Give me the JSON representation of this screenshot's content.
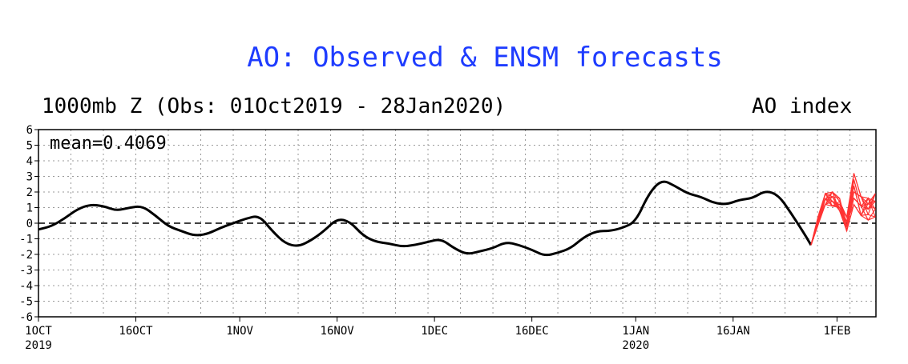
{
  "title": "AO: Observed & ENSM forecasts",
  "subtitle_left": "1000mb Z (Obs: 01Oct2019 - 28Jan2020)",
  "subtitle_right": "AO index",
  "colors": {
    "title": "#1e3cff",
    "observed": "#000000",
    "forecast": "#ff3333"
  },
  "chart_data": {
    "type": "line",
    "annotation": "mean=0.4069",
    "ylim": [
      -6,
      6
    ],
    "y_ticks": [
      "6",
      "5",
      "4",
      "3",
      "2",
      "1",
      "0",
      "-1",
      "-2",
      "-3",
      "-4",
      "-5",
      "-6"
    ],
    "xlim": [
      "2019-10-01",
      "2020-02-07"
    ],
    "x_ticks": [
      {
        "date": "2019-10-01",
        "label": "1OCT",
        "sub": "2019"
      },
      {
        "date": "2019-10-16",
        "label": "16OCT",
        "sub": ""
      },
      {
        "date": "2019-11-01",
        "label": "1NOV",
        "sub": ""
      },
      {
        "date": "2019-11-16",
        "label": "16NOV",
        "sub": ""
      },
      {
        "date": "2019-12-01",
        "label": "1DEC",
        "sub": ""
      },
      {
        "date": "2019-12-16",
        "label": "16DEC",
        "sub": ""
      },
      {
        "date": "2020-01-01",
        "label": "1JAN",
        "sub": "2020"
      },
      {
        "date": "2020-01-16",
        "label": "16JAN",
        "sub": ""
      },
      {
        "date": "2020-02-01",
        "label": "1FEB",
        "sub": ""
      }
    ],
    "grid": true,
    "zero_line": "dashed",
    "observed": {
      "x": [
        "2019-10-01",
        "2019-10-03",
        "2019-10-05",
        "2019-10-07",
        "2019-10-09",
        "2019-10-11",
        "2019-10-13",
        "2019-10-15",
        "2019-10-17",
        "2019-10-19",
        "2019-10-21",
        "2019-10-23",
        "2019-10-25",
        "2019-10-27",
        "2019-10-29",
        "2019-10-31",
        "2019-11-02",
        "2019-11-04",
        "2019-11-06",
        "2019-11-08",
        "2019-11-10",
        "2019-11-12",
        "2019-11-14",
        "2019-11-16",
        "2019-11-18",
        "2019-11-20",
        "2019-11-22",
        "2019-11-24",
        "2019-11-26",
        "2019-11-28",
        "2019-11-30",
        "2019-12-02",
        "2019-12-04",
        "2019-12-06",
        "2019-12-08",
        "2019-12-10",
        "2019-12-12",
        "2019-12-14",
        "2019-12-16",
        "2019-12-18",
        "2019-12-20",
        "2019-12-22",
        "2019-12-24",
        "2019-12-26",
        "2019-12-28",
        "2019-12-30",
        "2020-01-01",
        "2020-01-03",
        "2020-01-05",
        "2020-01-07",
        "2020-01-09",
        "2020-01-11",
        "2020-01-13",
        "2020-01-15",
        "2020-01-17",
        "2020-01-19",
        "2020-01-21",
        "2020-01-23",
        "2020-01-25",
        "2020-01-27",
        "2020-01-28"
      ],
      "y": [
        -0.4,
        -0.2,
        0.3,
        0.9,
        1.2,
        1.1,
        0.8,
        1.0,
        1.1,
        0.5,
        -0.2,
        -0.5,
        -0.8,
        -0.7,
        -0.3,
        0.0,
        0.3,
        0.5,
        -0.5,
        -1.3,
        -1.5,
        -1.1,
        -0.5,
        0.3,
        0.1,
        -0.8,
        -1.2,
        -1.3,
        -1.5,
        -1.4,
        -1.2,
        -1.0,
        -1.6,
        -2.0,
        -1.8,
        -1.6,
        -1.2,
        -1.4,
        -1.7,
        -2.1,
        -1.9,
        -1.6,
        -0.9,
        -0.5,
        -0.5,
        -0.3,
        0.1,
        1.9,
        2.8,
        2.4,
        1.9,
        1.7,
        1.3,
        1.2,
        1.5,
        1.6,
        2.1,
        1.8,
        0.6,
        -0.7,
        -1.4
      ],
      "note": "observed series drawn black"
    },
    "forecast_members": 12
  }
}
